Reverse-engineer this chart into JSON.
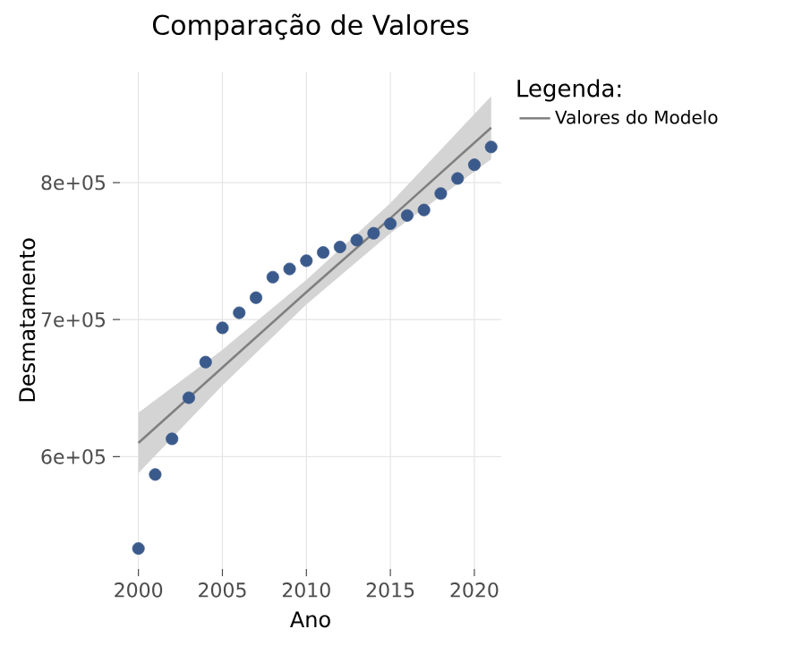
{
  "chart_data": {
    "type": "scatter",
    "title": "Comparação de Valores",
    "xlabel": "Ano",
    "ylabel": "Desmatamento",
    "legend_title": "Legenda:",
    "xlim": [
      1998.9,
      2021.6
    ],
    "ylim": [
      518000,
      881000
    ],
    "xticks": [
      2000,
      2005,
      2010,
      2015,
      2020
    ],
    "yticks": [
      {
        "value": 600000,
        "label": "6e+05"
      },
      {
        "value": 700000,
        "label": "7e+05"
      },
      {
        "value": 800000,
        "label": "8e+05"
      }
    ],
    "grid": true,
    "legend": "right",
    "series": [
      {
        "marker": "circle",
        "color": "#3b5a8c",
        "x": [
          2000,
          2001,
          2002,
          2003,
          2004,
          2005,
          2006,
          2007,
          2008,
          2009,
          2010,
          2011,
          2012,
          2013,
          2014,
          2015,
          2016,
          2017,
          2018,
          2019,
          2020,
          2021
        ],
        "values": [
          533000,
          587000,
          613000,
          643000,
          669000,
          694000,
          705000,
          716000,
          731000,
          737000,
          743000,
          749000,
          753000,
          758000,
          763000,
          770000,
          776000,
          780000,
          792000,
          803000,
          813000,
          826000
        ]
      },
      {
        "type": "line",
        "marker": "none",
        "name": "Valores do Modelo",
        "color": "#808080",
        "x": [
          2000,
          2005,
          2010,
          2015,
          2021
        ],
        "values": [
          610000,
          665000,
          720000,
          774000,
          840000
        ],
        "lower": [
          588000,
          652000,
          711000,
          763000,
          817000
        ],
        "upper": [
          632000,
          678000,
          729000,
          785000,
          863000
        ]
      }
    ]
  }
}
